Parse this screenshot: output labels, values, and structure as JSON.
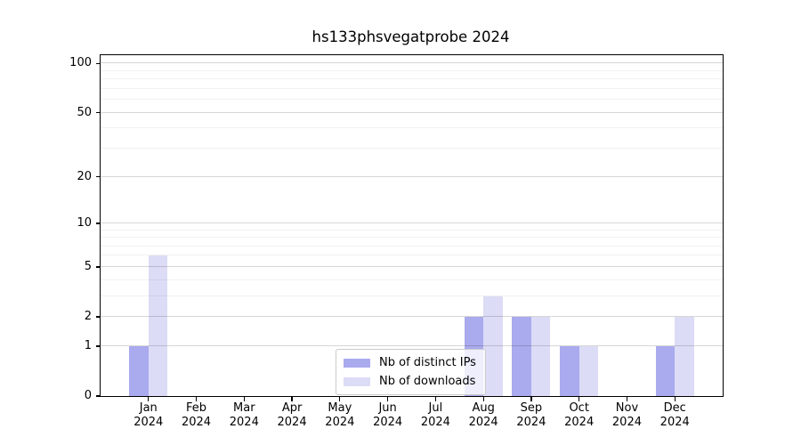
{
  "chart_data": {
    "type": "bar",
    "title": "hs133phsvegatprobe 2024",
    "categories": [
      "Jan",
      "Feb",
      "Mar",
      "Apr",
      "May",
      "Jun",
      "Jul",
      "Aug",
      "Sep",
      "Oct",
      "Nov",
      "Dec"
    ],
    "category_sublabel": "2024",
    "series": [
      {
        "name": "Nb of distinct IPs",
        "color": "#aaaaee",
        "values": [
          1,
          0,
          0,
          0,
          0,
          0,
          0,
          2,
          2,
          1,
          0,
          1
        ]
      },
      {
        "name": "Nb of downloads",
        "color": "#dcdcf6",
        "values": [
          6,
          0,
          0,
          0,
          0,
          0,
          0,
          3,
          2,
          1,
          0,
          2
        ]
      }
    ],
    "xlabel": "",
    "ylabel": "",
    "yscale": "log1p",
    "ylim": [
      0,
      113
    ],
    "y_ticks": [
      0,
      1,
      2,
      5,
      10,
      20,
      50,
      100
    ],
    "y_minor_gridlines": [
      3,
      4,
      6,
      7,
      8,
      9,
      30,
      40,
      60,
      70,
      80,
      90
    ],
    "grid": true,
    "legend_position": "lower center",
    "colors": {
      "axis": "#000000",
      "grid_major": "#d6d6d6",
      "grid_minor": "#f1f1f1"
    }
  }
}
